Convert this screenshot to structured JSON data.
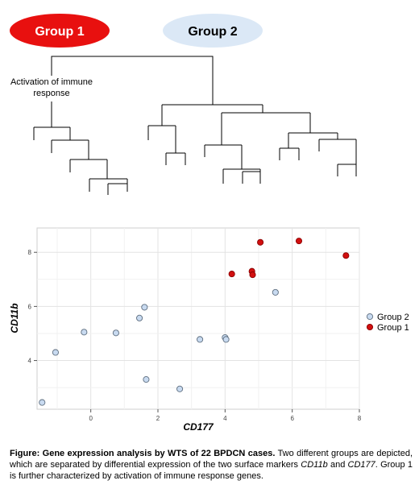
{
  "dendrogram": {
    "group1_label": "Group 1",
    "group2_label": "Group 2",
    "group1_color": "#e8100f",
    "group2_color": "#dbe8f6",
    "annotation_line1": "Activation of immune",
    "annotation_line2": "response"
  },
  "chart_data": {
    "type": "scatter",
    "xlabel": "CD177",
    "ylabel": "CD11b",
    "xlim": [
      -1.6,
      8.0
    ],
    "ylim": [
      2.2,
      8.9
    ],
    "xticks": [
      0,
      2,
      4,
      6,
      8
    ],
    "yticks": [
      4,
      6,
      8
    ],
    "grid": true,
    "legend_position": "right",
    "series": [
      {
        "name": "Group 2",
        "color": "#c8daf0",
        "edge": "#5f6f80",
        "points": [
          [
            -1.45,
            2.45
          ],
          [
            -1.05,
            4.3
          ],
          [
            -0.2,
            5.05
          ],
          [
            0.75,
            5.02
          ],
          [
            1.45,
            5.57
          ],
          [
            1.6,
            5.97
          ],
          [
            1.65,
            3.3
          ],
          [
            2.65,
            2.95
          ],
          [
            3.25,
            4.78
          ],
          [
            4.0,
            4.85
          ],
          [
            4.03,
            4.78
          ],
          [
            5.5,
            6.52
          ]
        ]
      },
      {
        "name": "Group 1",
        "color": "#d10f0f",
        "edge": "#8a0000",
        "points": [
          [
            4.2,
            7.2
          ],
          [
            4.8,
            7.3
          ],
          [
            4.82,
            7.17
          ],
          [
            5.05,
            8.37
          ],
          [
            6.2,
            8.42
          ],
          [
            7.6,
            7.88
          ]
        ]
      }
    ]
  },
  "caption": {
    "bold": "Figure: Gene expression analysis by WTS of 22 BPDCN cases.",
    "text1": " Two different groups are depicted, which are separated by differential expression of the two surface markers ",
    "marker1": "CD11b",
    "text2": " and ",
    "marker2": "CD177",
    "text3": ". Group 1 is further characterized by activation of immune response genes."
  }
}
